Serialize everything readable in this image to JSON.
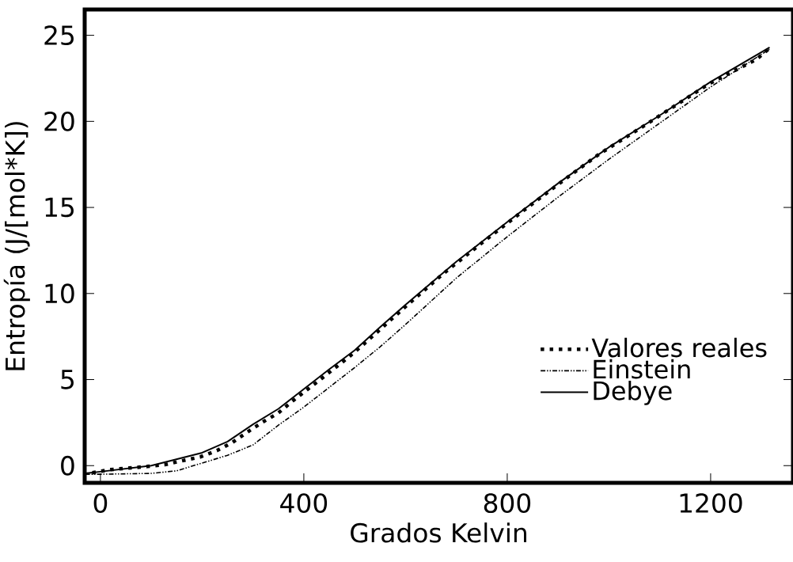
{
  "chart_data": {
    "type": "line",
    "xlabel": "Grados Kelvin",
    "ylabel": "Entropía (J/[mol*K])",
    "xlim": [
      -31,
      1362
    ],
    "ylim": [
      -1.0,
      26.5
    ],
    "xticks": [
      0,
      400,
      800,
      1200
    ],
    "yticks": [
      0,
      5,
      10,
      15,
      20,
      25
    ],
    "legend": "bottom right",
    "grid": false,
    "series": [
      {
        "name": "Valores reales",
        "color": "#000000",
        "line_style": "dotted",
        "x": [
          -16,
          20,
          56,
          92,
          126,
          160,
          196,
          229,
          259,
          288,
          319,
          349,
          377,
          405,
          433,
          461,
          488,
          514,
          542,
          568,
          594,
          674,
          757,
          840,
          924,
          981,
          1072,
          1195,
          1290,
          1316
        ],
        "values": [
          -0.41,
          -0.23,
          -0.14,
          -0.05,
          0.05,
          0.28,
          0.5,
          0.87,
          1.34,
          1.93,
          2.53,
          3.04,
          3.73,
          4.38,
          5.02,
          5.67,
          6.3,
          6.96,
          7.7,
          8.39,
          9.08,
          11.15,
          13.1,
          15.0,
          16.87,
          18.1,
          19.8,
          22.15,
          23.6,
          24.25
        ]
      },
      {
        "name": "Einstein",
        "color": "#000000",
        "line_style": "dashdotdotted",
        "x": [
          -30,
          0,
          100,
          150,
          200,
          250,
          300,
          350,
          400,
          450,
          500,
          550,
          600,
          700,
          800,
          900,
          1000,
          1100,
          1200,
          1316
        ],
        "values": [
          -0.5,
          -0.5,
          -0.45,
          -0.3,
          0.15,
          0.6,
          1.2,
          2.35,
          3.4,
          4.55,
          5.7,
          6.9,
          8.2,
          10.9,
          13.3,
          15.6,
          17.8,
          19.9,
          22.0,
          24.2
        ]
      },
      {
        "name": "Debye",
        "color": "#000000",
        "line_style": "solid",
        "x": [
          -30,
          0,
          100,
          200,
          250,
          300,
          350,
          400,
          450,
          500,
          550,
          600,
          700,
          800,
          900,
          1000,
          1100,
          1200,
          1316
        ],
        "values": [
          -0.45,
          -0.35,
          0.0,
          0.75,
          1.4,
          2.4,
          3.3,
          4.45,
          5.6,
          6.7,
          8.05,
          9.35,
          11.85,
          14.15,
          16.4,
          18.5,
          20.35,
          22.3,
          24.3
        ]
      }
    ]
  }
}
